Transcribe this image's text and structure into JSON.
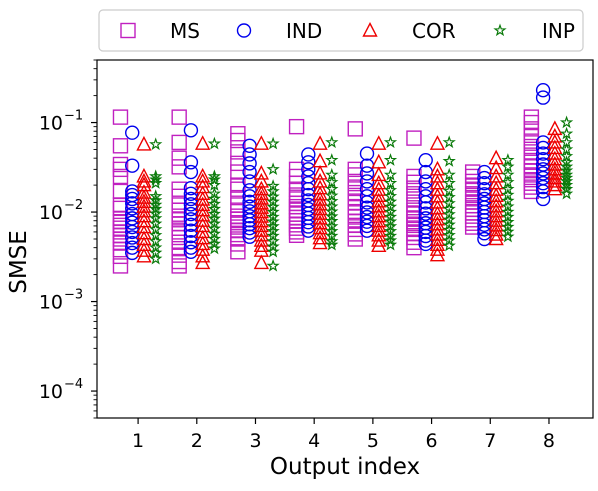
{
  "chart_data": {
    "type": "scatter",
    "title": "",
    "xlabel": "Output index",
    "ylabel": "SMSE",
    "yscale": "log",
    "xlim": [
      0.3,
      8.75
    ],
    "ylim": [
      5e-05,
      0.5
    ],
    "categories": [
      "1",
      "2",
      "3",
      "4",
      "5",
      "6",
      "7",
      "8"
    ],
    "y_ticks": [
      {
        "value": 0.0001,
        "base": "10",
        "exp": "−4"
      },
      {
        "value": 0.001,
        "base": "10",
        "exp": "−3"
      },
      {
        "value": 0.01,
        "base": "10",
        "exp": "−2"
      },
      {
        "value": 0.1,
        "base": "10",
        "exp": "−1"
      }
    ],
    "grid": false,
    "legend_position": "top",
    "series": [
      {
        "name": "MS",
        "marker": "square",
        "color": "#c020c0",
        "offset": -0.3,
        "values": [
          [
            0.115,
            0.055,
            0.034,
            0.03,
            0.025,
            0.017,
            0.012,
            0.011,
            0.0085,
            0.0078,
            0.0071,
            0.0066,
            0.006,
            0.0055,
            0.005,
            0.0045,
            0.0038,
            0.0032,
            0.0025
          ],
          [
            0.115,
            0.06,
            0.04,
            0.032,
            0.018,
            0.015,
            0.012,
            0.0105,
            0.009,
            0.0082,
            0.0074,
            0.0066,
            0.006,
            0.0052,
            0.0046,
            0.0039,
            0.0033,
            0.0028,
            0.0025
          ],
          [
            0.075,
            0.063,
            0.047,
            0.035,
            0.028,
            0.02,
            0.018,
            0.0145,
            0.012,
            0.0105,
            0.009,
            0.0083,
            0.0076,
            0.0068,
            0.0062,
            0.0056,
            0.005,
            0.0044,
            0.0036
          ],
          [
            0.09,
            0.03,
            0.025,
            0.021,
            0.018,
            0.0155,
            0.014,
            0.0125,
            0.0115,
            0.0105,
            0.0095,
            0.0087,
            0.008,
            0.0072,
            0.0066,
            0.006,
            0.0055
          ],
          [
            0.085,
            0.03,
            0.026,
            0.022,
            0.019,
            0.0165,
            0.0145,
            0.0128,
            0.0112,
            0.0098,
            0.0088,
            0.0079,
            0.0071,
            0.0064,
            0.0057,
            0.005
          ],
          [
            0.067,
            0.025,
            0.0215,
            0.0185,
            0.016,
            0.014,
            0.012,
            0.0105,
            0.0095,
            0.0086,
            0.0078,
            0.0071,
            0.0064,
            0.0058,
            0.0052,
            0.0046,
            0.004
          ],
          [
            0.028,
            0.025,
            0.022,
            0.02,
            0.018,
            0.016,
            0.0145,
            0.013,
            0.0118,
            0.0107,
            0.0098,
            0.009,
            0.0082,
            0.0075,
            0.0068
          ],
          [
            0.115,
            0.1,
            0.085,
            0.072,
            0.062,
            0.054,
            0.047,
            0.041,
            0.036,
            0.032,
            0.029,
            0.026,
            0.023,
            0.021,
            0.019,
            0.017
          ]
        ]
      },
      {
        "name": "IND",
        "marker": "circle",
        "color": "#0000ee",
        "offset": -0.1,
        "values": [
          [
            0.077,
            0.033,
            0.017,
            0.0155,
            0.014,
            0.0125,
            0.011,
            0.0095,
            0.0085,
            0.0076,
            0.0068,
            0.006,
            0.0052,
            0.0045,
            0.004,
            0.0035
          ],
          [
            0.082,
            0.036,
            0.028,
            0.0185,
            0.016,
            0.014,
            0.0122,
            0.0108,
            0.0095,
            0.0083,
            0.0072,
            0.0062,
            0.0054,
            0.0046,
            0.004,
            0.0036
          ],
          [
            0.055,
            0.044,
            0.035,
            0.028,
            0.022,
            0.0175,
            0.015,
            0.013,
            0.0115,
            0.0102,
            0.009,
            0.0081,
            0.0073,
            0.0066,
            0.0059,
            0.0053
          ],
          [
            0.044,
            0.036,
            0.03,
            0.025,
            0.021,
            0.018,
            0.0155,
            0.0135,
            0.012,
            0.0108,
            0.0096,
            0.0086,
            0.0077,
            0.0069,
            0.0062
          ],
          [
            0.045,
            0.033,
            0.027,
            0.022,
            0.018,
            0.015,
            0.0128,
            0.0112,
            0.0099,
            0.0088,
            0.0078,
            0.007,
            0.0062
          ],
          [
            0.038,
            0.028,
            0.022,
            0.018,
            0.015,
            0.0128,
            0.011,
            0.0096,
            0.0085,
            0.0075,
            0.0067,
            0.006,
            0.0054,
            0.0048,
            0.0044
          ],
          [
            0.028,
            0.024,
            0.021,
            0.018,
            0.0158,
            0.014,
            0.0125,
            0.0112,
            0.01,
            0.009,
            0.0081,
            0.0072,
            0.0064,
            0.0058,
            0.005
          ],
          [
            0.23,
            0.19,
            0.06,
            0.052,
            0.045,
            0.039,
            0.034,
            0.03,
            0.027,
            0.024,
            0.021,
            0.019,
            0.017,
            0.014
          ]
        ]
      },
      {
        "name": "COR",
        "marker": "triangle",
        "color": "#ee0000",
        "offset": 0.1,
        "values": [
          [
            0.057,
            0.025,
            0.022,
            0.02,
            0.0165,
            0.0145,
            0.013,
            0.0115,
            0.0102,
            0.009,
            0.0079,
            0.0068,
            0.0058,
            0.005,
            0.0043,
            0.0037,
            0.0032
          ],
          [
            0.058,
            0.025,
            0.022,
            0.019,
            0.016,
            0.0138,
            0.012,
            0.0105,
            0.0092,
            0.008,
            0.007,
            0.006,
            0.0051,
            0.0044,
            0.0038,
            0.0032,
            0.0027
          ],
          [
            0.058,
            0.027,
            0.022,
            0.018,
            0.016,
            0.0142,
            0.0125,
            0.0112,
            0.01,
            0.0089,
            0.0079,
            0.007,
            0.0062,
            0.0055,
            0.0048,
            0.0042,
            0.0037,
            0.0027
          ],
          [
            0.058,
            0.037,
            0.027,
            0.022,
            0.0185,
            0.0158,
            0.0138,
            0.0122,
            0.0108,
            0.0096,
            0.0085,
            0.0075,
            0.0066,
            0.0058,
            0.0051,
            0.0045
          ],
          [
            0.058,
            0.036,
            0.026,
            0.021,
            0.0178,
            0.0152,
            0.0132,
            0.0116,
            0.0102,
            0.009,
            0.0079,
            0.007,
            0.0062,
            0.0055,
            0.0048,
            0.0042
          ],
          [
            0.058,
            0.03,
            0.025,
            0.021,
            0.0178,
            0.015,
            0.0128,
            0.011,
            0.0095,
            0.0083,
            0.0073,
            0.0064,
            0.0056,
            0.0049,
            0.0043,
            0.0038,
            0.0033
          ],
          [
            0.04,
            0.031,
            0.025,
            0.021,
            0.0178,
            0.0152,
            0.0132,
            0.0116,
            0.0102,
            0.009,
            0.008,
            0.0071,
            0.0063,
            0.0056,
            0.005
          ],
          [
            0.085,
            0.07,
            0.06,
            0.052,
            0.045,
            0.039,
            0.034,
            0.03,
            0.027,
            0.024,
            0.022,
            0.02,
            0.018
          ]
        ]
      },
      {
        "name": "INP",
        "marker": "star",
        "color": "#0a7a0a",
        "offset": 0.3,
        "values": [
          [
            0.057,
            0.025,
            0.023,
            0.021,
            0.015,
            0.0135,
            0.012,
            0.0108,
            0.0096,
            0.0085,
            0.0074,
            0.0064,
            0.0055,
            0.0047,
            0.004,
            0.0035,
            0.003
          ],
          [
            0.058,
            0.025,
            0.023,
            0.02,
            0.016,
            0.014,
            0.0123,
            0.0108,
            0.0095,
            0.0084,
            0.0074,
            0.0065,
            0.0057,
            0.005,
            0.0044,
            0.0039
          ],
          [
            0.058,
            0.03,
            0.0195,
            0.017,
            0.0148,
            0.013,
            0.0114,
            0.01,
            0.0088,
            0.0078,
            0.0069,
            0.0061,
            0.0054,
            0.0047,
            0.0041,
            0.0036,
            0.0025
          ],
          [
            0.06,
            0.038,
            0.026,
            0.0215,
            0.018,
            0.0152,
            0.0132,
            0.0115,
            0.0101,
            0.0089,
            0.0079,
            0.0069,
            0.0061,
            0.0054,
            0.0047,
            0.0043
          ],
          [
            0.06,
            0.038,
            0.026,
            0.021,
            0.0175,
            0.015,
            0.013,
            0.0114,
            0.01,
            0.0088,
            0.0078,
            0.0069,
            0.0061,
            0.0054,
            0.0048,
            0.0043
          ],
          [
            0.06,
            0.037,
            0.026,
            0.021,
            0.0172,
            0.0146,
            0.0125,
            0.0108,
            0.0094,
            0.0082,
            0.0072,
            0.0063,
            0.0055,
            0.0048,
            0.0042
          ],
          [
            0.038,
            0.032,
            0.026,
            0.0215,
            0.018,
            0.0155,
            0.0133,
            0.0115,
            0.01,
            0.0088,
            0.0077,
            0.0068,
            0.006,
            0.0053
          ],
          [
            0.1,
            0.075,
            0.06,
            0.05,
            0.042,
            0.036,
            0.032,
            0.029,
            0.026,
            0.024,
            0.022,
            0.02,
            0.018,
            0.016
          ]
        ]
      }
    ]
  }
}
